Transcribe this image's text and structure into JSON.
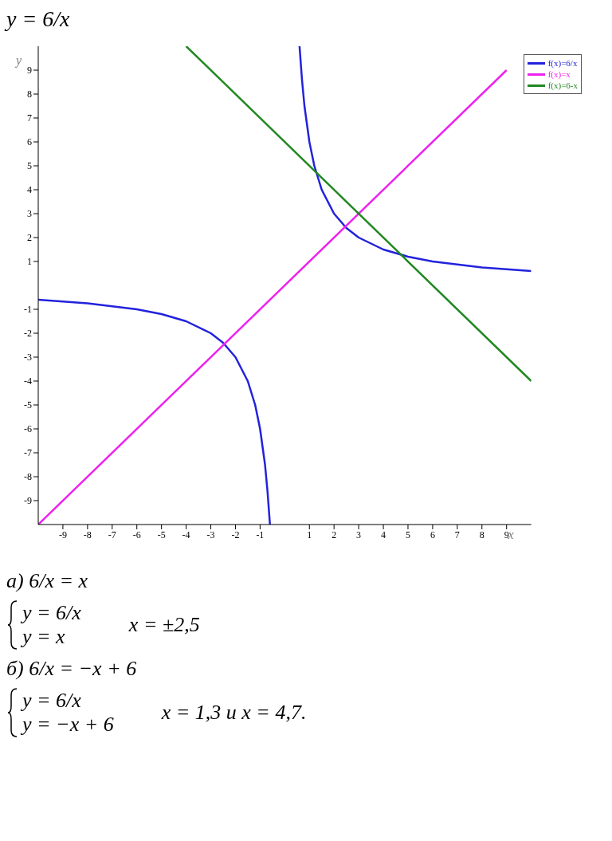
{
  "chart_data": {
    "type": "line",
    "title": "y = 6/x",
    "xlabel": "x",
    "ylabel": "y",
    "xlim": [
      -10,
      10
    ],
    "ylim": [
      -10,
      10
    ],
    "xticks": [
      -9,
      -8,
      -7,
      -6,
      -5,
      -4,
      -3,
      -2,
      -1,
      1,
      2,
      3,
      4,
      5,
      6,
      7,
      8,
      9
    ],
    "yticks": [
      -9,
      -8,
      -7,
      -6,
      -5,
      -4,
      -3,
      -2,
      -1,
      1,
      2,
      3,
      4,
      5,
      6,
      7,
      8,
      9
    ],
    "grid": false,
    "legend": "top right",
    "marker": "none",
    "line_style": "solid",
    "series": [
      {
        "name": "f(x)=6/x",
        "color": "#2222dd",
        "x": [
          -10,
          -8,
          -6,
          -5,
          -4,
          -3,
          -2.5,
          -2,
          -1.5,
          -1.2,
          -1,
          -0.8,
          -0.7,
          -0.6,
          0,
          0.6,
          0.7,
          0.8,
          1,
          1.2,
          1.5,
          2,
          2.5,
          3,
          4,
          5,
          6,
          8,
          10
        ],
        "values": [
          -0.6,
          -0.75,
          -1,
          -1.2,
          -1.5,
          -2,
          -2.4,
          -3,
          -4,
          -5,
          -6,
          -7.5,
          -8.6,
          -10,
          null,
          10,
          8.6,
          7.5,
          6,
          5,
          4,
          3,
          2.4,
          2,
          1.5,
          1.2,
          1,
          0.75,
          0.6
        ]
      },
      {
        "name": "f(x)=x",
        "color": "#ee22ee",
        "x": [
          -10,
          9
        ],
        "values": [
          -10,
          9
        ]
      },
      {
        "name": "f(x)=6-x",
        "color": "#228822",
        "x": [
          -4,
          10
        ],
        "values": [
          10,
          -4
        ]
      }
    ],
    "annotations": [
      "а) 6/x = x",
      "y = 6/x",
      "y = x",
      "x = ±2,5",
      "б) 6/x = −x + 6",
      "y = 6/x",
      "y = −x + 6",
      "x = 1,3 и x = 4,7."
    ]
  }
}
